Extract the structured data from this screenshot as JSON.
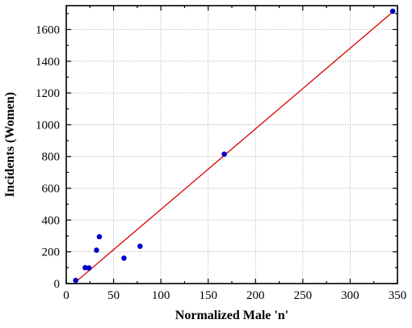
{
  "chart_data": {
    "type": "scatter",
    "title": "",
    "xlabel": "Normalized Male 'n'",
    "ylabel": "Incidents (Women)",
    "xlim": [
      0,
      350
    ],
    "ylim": [
      0,
      1750
    ],
    "x_ticks": [
      0,
      50,
      100,
      150,
      200,
      250,
      300,
      350
    ],
    "y_ticks": [
      0,
      200,
      400,
      600,
      800,
      1000,
      1200,
      1400,
      1600
    ],
    "grid": true,
    "series": [
      {
        "type": "scatter",
        "color": "#0000cc",
        "points": [
          {
            "x": 10,
            "y": 20
          },
          {
            "x": 20,
            "y": 100
          },
          {
            "x": 24,
            "y": 98
          },
          {
            "x": 32,
            "y": 210
          },
          {
            "x": 35,
            "y": 295
          },
          {
            "x": 61,
            "y": 160
          },
          {
            "x": 78,
            "y": 235
          },
          {
            "x": 167,
            "y": 815
          },
          {
            "x": 345,
            "y": 1715
          }
        ]
      },
      {
        "type": "line",
        "color": "#dd0000",
        "points": [
          {
            "x": 8,
            "y": 0
          },
          {
            "x": 347,
            "y": 1720
          }
        ]
      }
    ]
  }
}
